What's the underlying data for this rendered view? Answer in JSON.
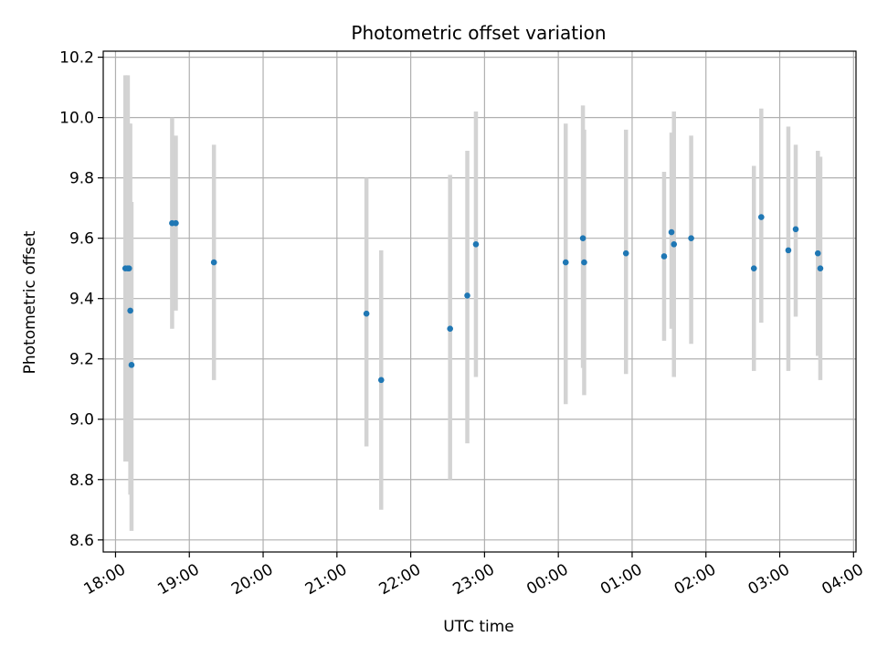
{
  "chart_data": {
    "type": "scatter",
    "title": "Photometric offset variation",
    "xlabel": "UTC time",
    "ylabel": "Photometric offset",
    "x_unit": "UTC hh:mm (evening to next morning)",
    "xlim": [
      "17:50",
      "04:02"
    ],
    "ylim": [
      8.56,
      10.22
    ],
    "x_ticks": [
      "18:00",
      "19:00",
      "20:00",
      "21:00",
      "22:00",
      "23:00",
      "00:00",
      "01:00",
      "02:00",
      "03:00",
      "04:00"
    ],
    "y_ticks": [
      8.6,
      8.8,
      9.0,
      9.2,
      9.4,
      9.6,
      9.8,
      10.0,
      10.2
    ],
    "y_tick_labels": [
      "8.6",
      "8.8",
      "9.0",
      "9.2",
      "9.4",
      "9.6",
      "9.8",
      "10.0",
      "10.2"
    ],
    "grid": true,
    "colors": {
      "point": "#1f77b4",
      "errorbar": "#d3d3d3",
      "grid": "#b0b0b0"
    },
    "series": [
      {
        "points": [
          {
            "x": "18:08",
            "y": 9.5,
            "lo": 8.86,
            "hi": 10.14
          },
          {
            "x": "18:10",
            "y": 9.5,
            "lo": 8.86,
            "hi": 10.14
          },
          {
            "x": "18:11",
            "y": 9.5,
            "lo": 9.0,
            "hi": 9.98
          },
          {
            "x": "18:12",
            "y": 9.36,
            "lo": 8.75,
            "hi": 9.98
          },
          {
            "x": "18:13",
            "y": 9.18,
            "lo": 8.63,
            "hi": 9.72
          },
          {
            "x": "18:46",
            "y": 9.65,
            "lo": 9.3,
            "hi": 10.0
          },
          {
            "x": "18:49",
            "y": 9.65,
            "lo": 9.36,
            "hi": 9.94
          },
          {
            "x": "19:20",
            "y": 9.52,
            "lo": 9.13,
            "hi": 9.91
          },
          {
            "x": "21:24",
            "y": 9.35,
            "lo": 8.91,
            "hi": 9.8
          },
          {
            "x": "21:36",
            "y": 9.13,
            "lo": 8.7,
            "hi": 9.56
          },
          {
            "x": "22:32",
            "y": 9.3,
            "lo": 8.8,
            "hi": 9.81
          },
          {
            "x": "22:46",
            "y": 9.41,
            "lo": 8.92,
            "hi": 9.89
          },
          {
            "x": "22:53",
            "y": 9.58,
            "lo": 9.14,
            "hi": 10.02
          },
          {
            "x": "00:06",
            "y": 9.52,
            "lo": 9.05,
            "hi": 9.98
          },
          {
            "x": "00:20",
            "y": 9.6,
            "lo": 9.17,
            "hi": 10.04
          },
          {
            "x": "00:21",
            "y": 9.52,
            "lo": 9.08,
            "hi": 9.96
          },
          {
            "x": "00:55",
            "y": 9.55,
            "lo": 9.15,
            "hi": 9.96
          },
          {
            "x": "01:26",
            "y": 9.54,
            "lo": 9.26,
            "hi": 9.82
          },
          {
            "x": "01:32",
            "y": 9.62,
            "lo": 9.3,
            "hi": 9.95
          },
          {
            "x": "01:34",
            "y": 9.58,
            "lo": 9.14,
            "hi": 10.02
          },
          {
            "x": "01:48",
            "y": 9.6,
            "lo": 9.25,
            "hi": 9.94
          },
          {
            "x": "02:39",
            "y": 9.5,
            "lo": 9.16,
            "hi": 9.84
          },
          {
            "x": "02:45",
            "y": 9.67,
            "lo": 9.32,
            "hi": 10.03
          },
          {
            "x": "03:07",
            "y": 9.56,
            "lo": 9.16,
            "hi": 9.97
          },
          {
            "x": "03:13",
            "y": 9.63,
            "lo": 9.34,
            "hi": 9.91
          },
          {
            "x": "03:31",
            "y": 9.55,
            "lo": 9.21,
            "hi": 9.89
          },
          {
            "x": "03:33",
            "y": 9.5,
            "lo": 9.13,
            "hi": 9.87
          }
        ]
      }
    ]
  }
}
